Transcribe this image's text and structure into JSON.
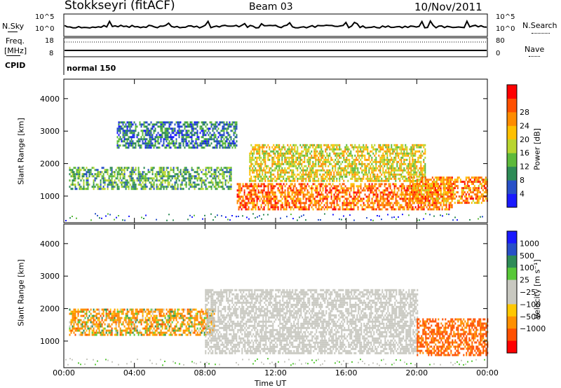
{
  "header": {
    "station": "Stokkseyri (fitACF)",
    "beam": "Beam 03",
    "date": "10/Nov/2011"
  },
  "top_panels": {
    "nsky_label": "N.Sky",
    "nsearch_label": "N.Search",
    "noise_ticks": [
      "10^5",
      "10^0"
    ],
    "freq_label_1": "Freq.",
    "freq_label_2": "[MHz]",
    "freq_ticks": [
      "18",
      "8"
    ],
    "nave_label": "Nave",
    "nave_ticks": [
      "80",
      "0"
    ],
    "cpid_label": "CPID",
    "cpid_value": "normal 150"
  },
  "colors": {
    "power_scale": [
      "#1a1aff",
      "#2850c8",
      "#2e8b57",
      "#5dba3b",
      "#b8d52f",
      "#ffc000",
      "#ff8c00",
      "#ff5000",
      "#ff0000"
    ],
    "velocity_scale": [
      "#ff0000",
      "#ff5000",
      "#ff9000",
      "#ffc800",
      "#c8c8c0",
      "#c8c8c0",
      "#58c838",
      "#2e8b57",
      "#2850c8",
      "#1a1aff"
    ]
  },
  "chart_data": [
    {
      "type": "heatmap",
      "name": "power-panel",
      "xlabel": "",
      "ylabel": "Slant Range [km]",
      "x_ticks": [
        "00:00",
        "04:00",
        "08:00",
        "12:00",
        "16:00",
        "20:00",
        "00:00"
      ],
      "x_range_hours": [
        0,
        24
      ],
      "ylim": [
        180,
        4600
      ],
      "y_ticks": [
        1000,
        2000,
        3000,
        4000
      ],
      "colorbar": {
        "label": "Power [dB]",
        "range": [
          0,
          32
        ],
        "ticks": [
          "4",
          "8",
          "12",
          "16",
          "20",
          "24",
          "28"
        ]
      },
      "regions": [
        {
          "t": [
            0.3,
            9.5
          ],
          "r": [
            1200,
            1900
          ],
          "value": 13
        },
        {
          "t": [
            3.0,
            9.8
          ],
          "r": [
            2500,
            3300
          ],
          "value": 9
        },
        {
          "t": [
            9.8,
            22.0
          ],
          "r": [
            600,
            1400
          ],
          "value": 28
        },
        {
          "t": [
            10.5,
            20.5
          ],
          "r": [
            1500,
            2600
          ],
          "value": 20
        },
        {
          "t": [
            19.5,
            24.0
          ],
          "r": [
            800,
            1600
          ],
          "value": 26
        }
      ]
    },
    {
      "type": "heatmap",
      "name": "velocity-panel",
      "xlabel": "Time UT",
      "ylabel": "Slant Range [km]",
      "x_ticks": [
        "00:00",
        "04:00",
        "08:00",
        "12:00",
        "16:00",
        "20:00",
        "00:00"
      ],
      "x_range_hours": [
        0,
        24
      ],
      "ylim": [
        180,
        4600
      ],
      "y_ticks": [
        1000,
        2000,
        3000,
        4000
      ],
      "colorbar": {
        "label": "Velocity [m s⁻¹]",
        "ticks": [
          "1000",
          "500",
          "100",
          "25",
          "−25",
          "−100",
          "−500",
          "−1000"
        ]
      },
      "regions": [
        {
          "t": [
            0.3,
            8.5
          ],
          "r": [
            1200,
            2000
          ],
          "value": -200
        },
        {
          "t": [
            8.0,
            20.0
          ],
          "r": [
            600,
            2600
          ],
          "value": 0
        },
        {
          "t": [
            20.0,
            24.0
          ],
          "r": [
            600,
            1700
          ],
          "value": -600
        }
      ]
    }
  ]
}
